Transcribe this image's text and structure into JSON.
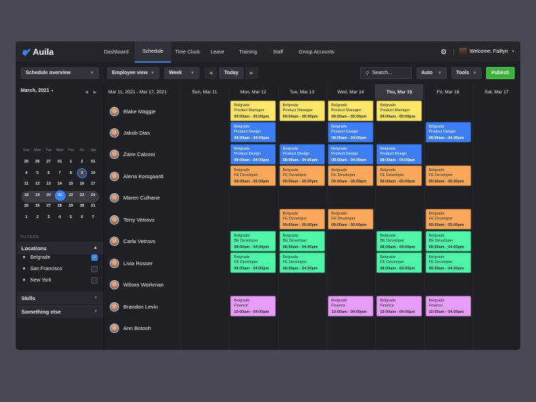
{
  "app": {
    "name": "Auila"
  },
  "nav": [
    {
      "label": "Dashboard"
    },
    {
      "label": "Schedule",
      "active": true
    },
    {
      "label": "Time Clock"
    },
    {
      "label": "Leave"
    },
    {
      "label": "Training"
    },
    {
      "label": "Staff"
    },
    {
      "label": "Group Accounts"
    }
  ],
  "user": {
    "welcome": "Welcome, Failtyn"
  },
  "toolbar": {
    "overview": "Schedule overview",
    "view": "Employee view",
    "range": "Week",
    "today": "Today",
    "search_placeholder": "Search...",
    "auto": "Auto",
    "tools": "Tools",
    "publish": "Publish"
  },
  "calendar": {
    "month": "March, 2021",
    "weekdays": [
      "Sun",
      "Mon",
      "Tue",
      "Wed",
      "Thu",
      "Fri",
      "Sat"
    ],
    "weeks": [
      [
        "25",
        "26",
        "27",
        "01",
        "1",
        "2",
        "01"
      ],
      [
        "4",
        "5",
        "6",
        "7",
        "8",
        "9",
        "10"
      ],
      [
        "11",
        "12",
        "13",
        "14",
        "15",
        "16",
        "17"
      ],
      [
        "18",
        "19",
        "20",
        "01",
        "22",
        "23",
        "24"
      ],
      [
        "25",
        "26",
        "27",
        "28",
        "29",
        "30",
        "31"
      ],
      [
        "1",
        "2",
        "3",
        "4",
        "5",
        "6",
        "7"
      ]
    ],
    "today": "9",
    "selected": "01"
  },
  "filters": {
    "title": "FILTERS",
    "locations": "Locations",
    "items": [
      {
        "label": "Belgrade",
        "checked": true
      },
      {
        "label": "San Francisco",
        "checked": false
      },
      {
        "label": "New York",
        "checked": false
      }
    ],
    "skills": "Skills",
    "other": "Something else"
  },
  "schedule": {
    "range": "Mar 11, 2021 - Mar 17, 2021",
    "days": [
      "Sun, Mar 11",
      "Mon, Mar 12",
      "Tue, Mar 13",
      "Wed, Mar 14",
      "Thu, Mar 15",
      "Fri, Mar 16",
      "Sat, Mar 17"
    ],
    "today_index": 4
  },
  "shift_types": {
    "pm": {
      "location": "Belgrade",
      "role": "Product Manager",
      "time": "09:00am - 05:00pm",
      "color": "#fde568",
      "text": "#2a2b30"
    },
    "pd": {
      "location": "Belgrade",
      "role": "Product Design",
      "time": "08:00am - 04:00pm",
      "color": "#3d7ef5",
      "text": "#ffffff"
    },
    "fe": {
      "location": "Belgrade",
      "role": "FE Developer",
      "time": "09:00am - 05:00pm",
      "color": "#fba85a",
      "text": "#2a2b30"
    },
    "be": {
      "location": "Belgrade",
      "role": "BE Developer",
      "time": "08:00am - 04:00pm",
      "color": "#4ef5a8",
      "text": "#2a2b30"
    },
    "feg": {
      "location": "Belgrade",
      "role": "FE Developer",
      "time": "08:00am - 04:00pm",
      "color": "#4ef5a8",
      "text": "#2a2b30"
    },
    "fin": {
      "location": "Belgrade",
      "role": "Finance",
      "time": "10:00am - 04:00pm",
      "color": "#e79cf7",
      "text": "#2a2b30"
    }
  },
  "employees": [
    {
      "name": "Blake Maggie",
      "shifts": [
        null,
        "pm",
        "pm",
        "pm",
        "pm",
        null,
        null
      ]
    },
    {
      "name": "Jakob Dias",
      "shifts": [
        null,
        "pd",
        null,
        "pd",
        null,
        "pd",
        null
      ]
    },
    {
      "name": "Zaire Calzoni",
      "shifts": [
        null,
        "pd",
        "pd",
        "pd",
        "pd",
        null,
        null
      ]
    },
    {
      "name": "Alena Korsgaard",
      "shifts": [
        null,
        "fe",
        "fe",
        "fe",
        "fe",
        "fe",
        null
      ]
    },
    {
      "name": "Maren Culhane",
      "shifts": [
        null,
        null,
        null,
        null,
        null,
        null,
        null
      ]
    },
    {
      "name": "Terry Vetrovs",
      "shifts": [
        null,
        null,
        "fe",
        "fe",
        null,
        "fe",
        null
      ]
    },
    {
      "name": "Carla Vetrovs",
      "shifts": [
        null,
        "be",
        "be",
        null,
        "be",
        "be",
        null
      ]
    },
    {
      "name": "Livia Rosser",
      "shifts": [
        null,
        "feg",
        "feg",
        null,
        "feg",
        "feg",
        null
      ]
    },
    {
      "name": "Wilson Workman",
      "shifts": [
        null,
        null,
        null,
        null,
        null,
        null,
        null
      ]
    },
    {
      "name": "Brandon Levin",
      "shifts": [
        null,
        "fin",
        null,
        "fin",
        "fin",
        "fin",
        null
      ]
    },
    {
      "name": "Ann Botosh",
      "shifts": [
        null,
        null,
        null,
        null,
        null,
        null,
        null
      ]
    }
  ]
}
